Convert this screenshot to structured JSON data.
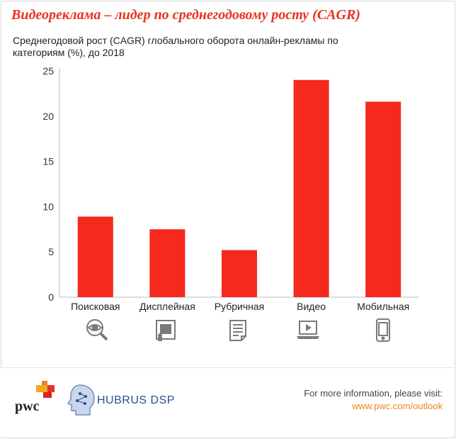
{
  "title": "Видеореклама – лидер по среднегодовому росту (CAGR)",
  "subtitle": "Среднегодовой рост (CAGR) глобального оборота онлайн-рекламы по категориям (%), до 2018",
  "chart_data": {
    "type": "bar",
    "categories": [
      "Поисковая",
      "Дисплейная",
      "Рубричная",
      "Видео",
      "Мобильная"
    ],
    "values": [
      8.9,
      7.5,
      5.2,
      24.0,
      21.6
    ],
    "ylim": [
      0,
      25
    ],
    "yticks": [
      0,
      5,
      10,
      15,
      20,
      25
    ],
    "bar_color": "#f5291c",
    "grid": false,
    "category_icons": [
      "magnifier-eye-icon",
      "display-board-icon",
      "classifieds-document-icon",
      "laptop-video-icon",
      "mobile-phone-icon"
    ]
  },
  "footer": {
    "logo_pwc": "pwc",
    "logo_hubrus": "HUBRUS DSP",
    "info_text": "For more information, please visit:",
    "info_link": "www.pwc.com/outlook"
  },
  "colors": {
    "title": "#e8321e",
    "accent": "#f0821e",
    "bars": "#f5291c",
    "icons": "#7a7a7a"
  }
}
